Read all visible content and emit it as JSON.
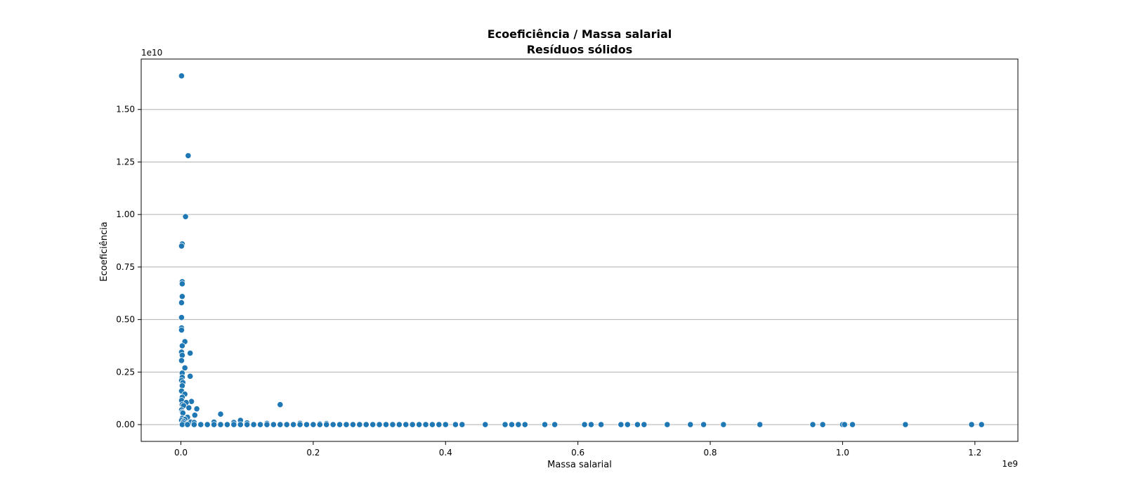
{
  "chart_data": {
    "type": "scatter",
    "title": "Ecoeficiência / Massa salarial",
    "subtitle": "Resíduos sólidos",
    "xlabel": "Massa salarial",
    "ylabel": "Ecoeficiência",
    "x_offset_label": "1e9",
    "y_offset_label": "1e10",
    "xlim": [
      -0.06,
      1.265
    ],
    "ylim": [
      -0.08,
      1.74
    ],
    "x_ticks": [
      0.0,
      0.2,
      0.4,
      0.6,
      0.8,
      1.0,
      1.2
    ],
    "x_tick_labels": [
      "0.0",
      "0.2",
      "0.4",
      "0.6",
      "0.8",
      "1.0",
      "1.2"
    ],
    "y_ticks": [
      0.0,
      0.25,
      0.5,
      0.75,
      1.0,
      1.25,
      1.5
    ],
    "y_tick_labels": [
      "0.00",
      "0.25",
      "0.50",
      "0.75",
      "1.00",
      "1.25",
      "1.50"
    ],
    "grid": "y-axis",
    "marker_color": "#1f77b4",
    "points": [
      [
        0.001,
        1.66
      ],
      [
        0.011,
        1.28
      ],
      [
        0.007,
        0.99
      ],
      [
        0.002,
        0.86
      ],
      [
        0.001,
        0.85
      ],
      [
        0.002,
        0.68
      ],
      [
        0.002,
        0.67
      ],
      [
        0.002,
        0.61
      ],
      [
        0.001,
        0.58
      ],
      [
        0.001,
        0.51
      ],
      [
        0.001,
        0.46
      ],
      [
        0.001,
        0.45
      ],
      [
        0.006,
        0.395
      ],
      [
        0.002,
        0.375
      ],
      [
        0.014,
        0.34
      ],
      [
        0.001,
        0.345
      ],
      [
        0.002,
        0.33
      ],
      [
        0.001,
        0.305
      ],
      [
        0.006,
        0.27
      ],
      [
        0.002,
        0.245
      ],
      [
        0.014,
        0.23
      ],
      [
        0.002,
        0.225
      ],
      [
        0.001,
        0.21
      ],
      [
        0.003,
        0.2
      ],
      [
        0.002,
        0.185
      ],
      [
        0.001,
        0.16
      ],
      [
        0.006,
        0.145
      ],
      [
        0.002,
        0.13
      ],
      [
        0.001,
        0.115
      ],
      [
        0.016,
        0.11
      ],
      [
        0.008,
        0.105
      ],
      [
        0.002,
        0.095
      ],
      [
        0.004,
        0.09
      ],
      [
        0.012,
        0.08
      ],
      [
        0.024,
        0.075
      ],
      [
        0.001,
        0.07
      ],
      [
        0.002,
        0.06
      ],
      [
        0.003,
        0.055
      ],
      [
        0.021,
        0.045
      ],
      [
        0.01,
        0.035
      ],
      [
        0.002,
        0.03
      ],
      [
        0.006,
        0.025
      ],
      [
        0.001,
        0.02
      ],
      [
        0.004,
        0.015
      ],
      [
        0.015,
        0.012
      ],
      [
        0.003,
        0.008
      ],
      [
        0.02,
        0.01
      ],
      [
        0.06,
        0.05
      ],
      [
        0.09,
        0.02
      ],
      [
        0.05,
        0.012
      ],
      [
        0.08,
        0.01
      ],
      [
        0.1,
        0.008
      ],
      [
        0.13,
        0.006
      ],
      [
        0.15,
        0.095
      ],
      [
        0.18,
        0.006
      ],
      [
        0.22,
        0.005
      ],
      [
        0.21,
        0.004
      ],
      [
        0.002,
        0.0
      ],
      [
        0.01,
        0.0
      ],
      [
        0.02,
        0.0
      ],
      [
        0.03,
        0.0
      ],
      [
        0.04,
        0.0
      ],
      [
        0.05,
        0.0
      ],
      [
        0.06,
        0.0
      ],
      [
        0.07,
        0.0
      ],
      [
        0.08,
        0.0
      ],
      [
        0.09,
        0.0
      ],
      [
        0.1,
        0.0
      ],
      [
        0.11,
        0.0
      ],
      [
        0.12,
        0.0
      ],
      [
        0.13,
        0.0
      ],
      [
        0.14,
        0.0
      ],
      [
        0.15,
        0.0
      ],
      [
        0.16,
        0.0
      ],
      [
        0.17,
        0.0
      ],
      [
        0.18,
        0.0
      ],
      [
        0.19,
        0.0
      ],
      [
        0.2,
        0.0
      ],
      [
        0.21,
        0.0
      ],
      [
        0.22,
        0.0
      ],
      [
        0.23,
        0.0
      ],
      [
        0.24,
        0.0
      ],
      [
        0.25,
        0.0
      ],
      [
        0.26,
        0.0
      ],
      [
        0.27,
        0.0
      ],
      [
        0.28,
        0.0
      ],
      [
        0.29,
        0.0
      ],
      [
        0.3,
        0.0
      ],
      [
        0.31,
        0.0
      ],
      [
        0.32,
        0.0
      ],
      [
        0.33,
        0.0
      ],
      [
        0.34,
        0.0
      ],
      [
        0.35,
        0.0
      ],
      [
        0.36,
        0.0
      ],
      [
        0.37,
        0.0
      ],
      [
        0.38,
        0.0
      ],
      [
        0.39,
        0.0
      ],
      [
        0.4,
        0.0
      ],
      [
        0.415,
        0.0
      ],
      [
        0.425,
        0.0
      ],
      [
        0.46,
        0.0
      ],
      [
        0.49,
        0.0
      ],
      [
        0.5,
        0.0
      ],
      [
        0.51,
        0.0
      ],
      [
        0.52,
        0.0
      ],
      [
        0.55,
        0.0
      ],
      [
        0.565,
        0.0
      ],
      [
        0.61,
        0.0
      ],
      [
        0.62,
        0.0
      ],
      [
        0.635,
        0.0
      ],
      [
        0.665,
        0.0
      ],
      [
        0.675,
        0.0
      ],
      [
        0.69,
        0.0
      ],
      [
        0.7,
        0.0
      ],
      [
        0.735,
        0.0
      ],
      [
        0.77,
        0.0
      ],
      [
        0.79,
        0.0
      ],
      [
        0.82,
        0.0
      ],
      [
        0.875,
        0.0
      ],
      [
        0.955,
        0.0
      ],
      [
        0.97,
        0.0
      ],
      [
        1.0,
        0.0
      ],
      [
        1.003,
        0.0
      ],
      [
        1.015,
        0.0
      ],
      [
        1.095,
        0.0
      ],
      [
        1.195,
        0.0
      ],
      [
        1.21,
        0.0
      ]
    ]
  }
}
